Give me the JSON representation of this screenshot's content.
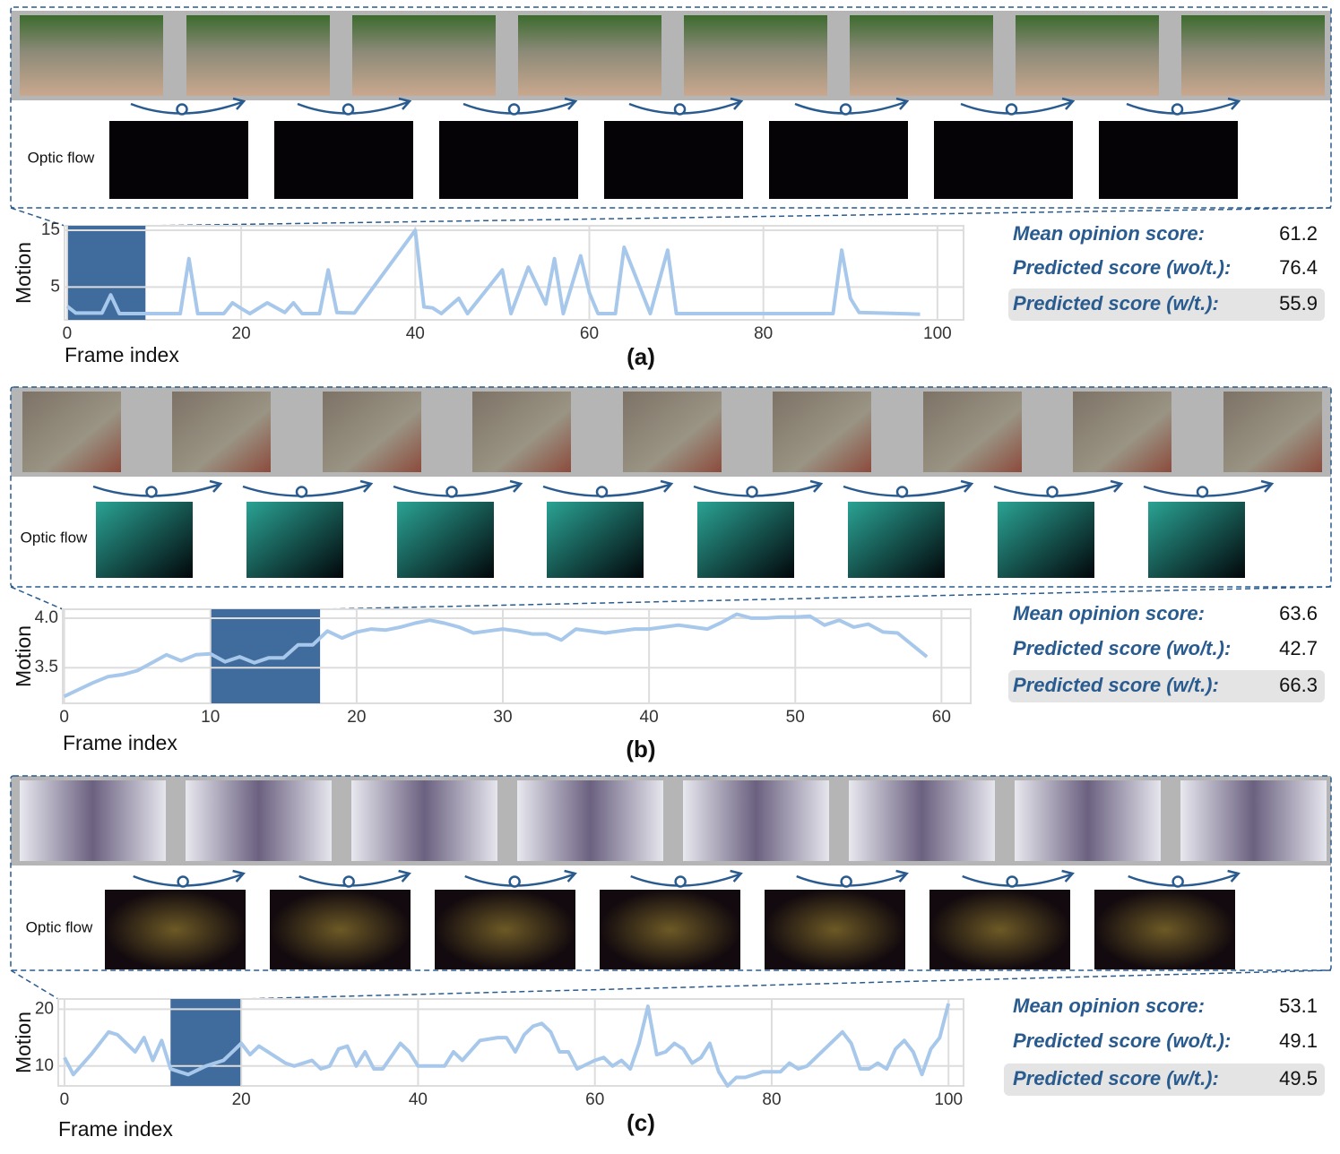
{
  "chart_data": [
    {
      "type": "line",
      "y_label": "Motion",
      "x_label": "Frame index",
      "color": "#a7c8ea",
      "grid": true,
      "highlight": [
        0,
        9
      ],
      "x": [
        0,
        1,
        4,
        5,
        6,
        13,
        14,
        15,
        18,
        19,
        20,
        21,
        23,
        25,
        26,
        27,
        29,
        30,
        31,
        33,
        40,
        41,
        42,
        43,
        45,
        46,
        50,
        51,
        53,
        55,
        56,
        57,
        59,
        60,
        61,
        63,
        64,
        67,
        69,
        70,
        88,
        89,
        90,
        91,
        98
      ],
      "values": [
        1.6,
        0.4,
        0.4,
        3.6,
        0.3,
        0.3,
        10,
        0.3,
        0.3,
        2.2,
        1.2,
        0.3,
        2.2,
        0.5,
        2.2,
        0.3,
        0.3,
        8,
        0.5,
        0.4,
        15,
        1.5,
        1.3,
        0.3,
        3,
        0.3,
        8,
        0.3,
        8.5,
        2,
        10,
        0.3,
        10.5,
        4,
        0.3,
        0.3,
        12,
        0.3,
        11.5,
        0.3,
        0.3,
        11.5,
        3,
        0.5,
        0.2
      ],
      "xlim": [
        -0.3,
        103
      ],
      "ylim": [
        -0.8,
        15.8
      ],
      "xticks": [
        0,
        20,
        40,
        60,
        80,
        100
      ],
      "yticks": [
        5,
        15
      ]
    },
    {
      "type": "line",
      "y_label": "Motion",
      "x_label": "Frame index",
      "color": "#a7c8ea",
      "grid": true,
      "highlight": [
        10,
        17.5
      ],
      "x": [
        0,
        1,
        2,
        3,
        4,
        5,
        6,
        7,
        8,
        9,
        10,
        11,
        12,
        13,
        14,
        15,
        16,
        17,
        18,
        19,
        20,
        21,
        22,
        23,
        24,
        25,
        26,
        27,
        28,
        29,
        30,
        31,
        32,
        33,
        34,
        35,
        36,
        37,
        38,
        39,
        40,
        41,
        42,
        43,
        44,
        45,
        46,
        47,
        48,
        49,
        50,
        51,
        52,
        53,
        54,
        55,
        56,
        57,
        58,
        59
      ],
      "values": [
        3.21,
        3.28,
        3.35,
        3.41,
        3.43,
        3.47,
        3.55,
        3.63,
        3.57,
        3.63,
        3.64,
        3.56,
        3.61,
        3.55,
        3.6,
        3.6,
        3.73,
        3.73,
        3.87,
        3.8,
        3.86,
        3.89,
        3.88,
        3.91,
        3.95,
        3.98,
        3.95,
        3.91,
        3.85,
        3.87,
        3.89,
        3.87,
        3.84,
        3.84,
        3.78,
        3.89,
        3.87,
        3.85,
        3.87,
        3.89,
        3.89,
        3.91,
        3.93,
        3.91,
        3.89,
        3.96,
        4.04,
        4.0,
        4.0,
        4.01,
        4.01,
        4.02,
        3.93,
        3.98,
        3.91,
        3.94,
        3.86,
        3.85,
        3.73,
        3.61
      ],
      "xlim": [
        -0.1,
        62
      ],
      "ylim": [
        3.14,
        4.09
      ],
      "xticks": [
        0,
        10,
        20,
        30,
        40,
        50,
        60
      ],
      "yticks": [
        3.5,
        {
          "value": 4,
          "label": "4.0"
        }
      ]
    },
    {
      "type": "line",
      "y_label": "Motion",
      "x_label": "Frame index",
      "color": "#a7c8ea",
      "grid": true,
      "highlight": [
        12,
        20
      ],
      "x": [
        0,
        1,
        3,
        5,
        6,
        8,
        9,
        10,
        11,
        12,
        13,
        14,
        16,
        18,
        20,
        21,
        22,
        25,
        26,
        28,
        29,
        30,
        31,
        32,
        33,
        34,
        35,
        36,
        38,
        39,
        40,
        41,
        43,
        44,
        45,
        47,
        49,
        50,
        51,
        52,
        53,
        54,
        55,
        56,
        57,
        58,
        60,
        61,
        62,
        63,
        64,
        65,
        66,
        67,
        68,
        69,
        70,
        71,
        72,
        73,
        74,
        75,
        76,
        77,
        79,
        81,
        82,
        83,
        84,
        86,
        88,
        89,
        90,
        91,
        92,
        93,
        94,
        95,
        96,
        97,
        98,
        99,
        100
      ],
      "values": [
        11.5,
        8.5,
        12,
        16,
        15.5,
        12.5,
        15,
        11,
        14.5,
        9.5,
        9,
        8.5,
        10,
        11,
        14,
        12,
        13.5,
        10.5,
        10,
        11,
        9.5,
        10,
        13,
        13.5,
        10,
        12.5,
        9.5,
        9.5,
        14,
        12.5,
        10,
        10,
        10,
        12.5,
        11,
        14.5,
        15,
        15,
        12.5,
        15.5,
        17,
        17.5,
        16,
        12.5,
        12.5,
        9.5,
        11,
        11.5,
        10,
        11,
        9.5,
        14,
        20.5,
        12,
        12.5,
        14,
        13,
        10.5,
        11.5,
        14,
        9,
        6.5,
        8,
        8,
        9,
        9,
        10.5,
        9.5,
        10,
        13,
        16,
        14,
        9.5,
        9.5,
        10.5,
        9.5,
        13,
        14.5,
        12.5,
        8.5,
        13,
        15,
        21
      ],
      "xlim": [
        -0.7,
        101.7
      ],
      "ylim": [
        6.5,
        21.8
      ],
      "xticks": [
        0,
        20,
        40,
        60,
        80,
        100
      ],
      "yticks": [
        10,
        20
      ]
    }
  ],
  "panels": [
    {
      "label": "(a)",
      "optic_flow": "Optic flow",
      "scores": [
        {
          "label": "Mean opinion score:",
          "value": 61.2
        },
        {
          "label": "Predicted score (wo/t.):",
          "value": 76.4
        },
        {
          "label": "Predicted  score (w/t.):",
          "value": 55.9
        }
      ]
    },
    {
      "label": "(b)",
      "optic_flow": "Optic flow",
      "scores": [
        {
          "label": "Mean opinion score:",
          "value": 63.6
        },
        {
          "label": "Predicted score (wo/t.):",
          "value": 42.7
        },
        {
          "label": "Predicted  score (w/t.):",
          "value": 66.3
        }
      ]
    },
    {
      "label": "(c)",
      "optic_flow": "Optic flow",
      "scores": [
        {
          "label": "Mean opinion score:",
          "value": 53.1
        },
        {
          "label": "Predicted score (wo/t.):",
          "value": 49.1
        },
        {
          "label": "Predicted  score (w/t.):",
          "value": 49.5
        }
      ]
    }
  ]
}
